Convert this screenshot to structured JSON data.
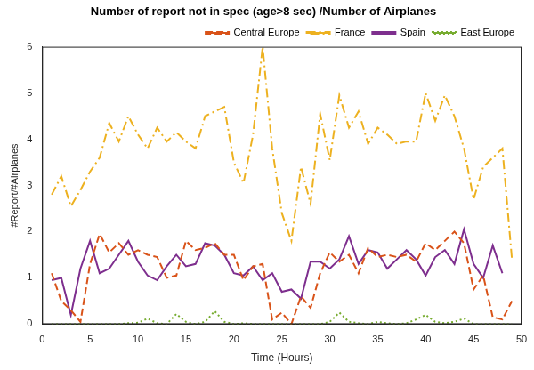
{
  "chart_data": {
    "type": "line",
    "title": "Number of report not in spec (age>8 sec) /Number of Airplanes",
    "x_label": "Time (Hours)",
    "y_label": "#Report/#Airplanes",
    "x": [
      1,
      2,
      3,
      4,
      5,
      6,
      7,
      8,
      9,
      10,
      11,
      12,
      13,
      14,
      15,
      16,
      17,
      18,
      19,
      20,
      21,
      22,
      23,
      24,
      25,
      26,
      27,
      28,
      29,
      30,
      31,
      32,
      33,
      34,
      35,
      36,
      37,
      38,
      39,
      40,
      41,
      42,
      43,
      44,
      45,
      46,
      47,
      48,
      49
    ],
    "series": [
      {
        "name": "Central Europe",
        "color": "#d95319",
        "line_style": "dashed",
        "values": [
          1.1,
          0.5,
          0.3,
          0.05,
          1.3,
          1.95,
          1.55,
          1.75,
          1.5,
          1.6,
          1.5,
          1.45,
          1.0,
          1.05,
          1.8,
          1.6,
          1.65,
          1.75,
          1.5,
          1.5,
          0.95,
          1.25,
          1.3,
          0.1,
          0.25,
          0.0,
          0.6,
          0.35,
          1.1,
          1.55,
          1.35,
          1.5,
          1.1,
          1.65,
          1.45,
          1.5,
          1.45,
          1.5,
          1.35,
          1.75,
          1.6,
          1.8,
          2.0,
          1.75,
          0.75,
          1.05,
          0.15,
          0.1,
          0.5
        ]
      },
      {
        "name": "France",
        "color": "#edb120",
        "line_style": "dashdot",
        "values": [
          2.8,
          3.2,
          2.55,
          2.9,
          3.3,
          3.6,
          4.35,
          3.95,
          4.5,
          4.1,
          3.8,
          4.25,
          3.95,
          4.15,
          3.95,
          3.8,
          4.5,
          4.6,
          4.7,
          3.5,
          3.05,
          4.1,
          6.0,
          3.8,
          2.4,
          1.8,
          3.4,
          2.6,
          4.55,
          3.55,
          4.95,
          4.25,
          4.6,
          3.9,
          4.25,
          4.1,
          3.9,
          3.95,
          3.95,
          5.0,
          4.4,
          4.95,
          4.5,
          3.8,
          2.7,
          3.4,
          3.6,
          3.8,
          1.4
        ]
      },
      {
        "name": "Spain",
        "color": "#7e2f8e",
        "line_style": "solid",
        "values": [
          0.95,
          1.0,
          0.2,
          1.2,
          1.8,
          1.1,
          1.2,
          1.5,
          1.8,
          1.35,
          1.05,
          0.95,
          1.25,
          1.5,
          1.25,
          1.3,
          1.75,
          1.7,
          1.5,
          1.1,
          1.05,
          1.25,
          0.95,
          1.1,
          0.7,
          0.75,
          0.55,
          1.35,
          1.35,
          1.2,
          1.4,
          1.9,
          1.3,
          1.6,
          1.55,
          1.2,
          1.4,
          1.6,
          1.4,
          1.05,
          1.45,
          1.6,
          1.3,
          2.05,
          1.3,
          1.0,
          1.7,
          1.1,
          null
        ]
      },
      {
        "name": "East Europe",
        "color": "#77ac30",
        "line_style": "dotted",
        "values": [
          0,
          0,
          0,
          0,
          0,
          0,
          0,
          0,
          0.02,
          0.03,
          0.12,
          0.02,
          0,
          0.22,
          0.05,
          0,
          0.05,
          0.28,
          0.05,
          0,
          0.02,
          0,
          0,
          0,
          0,
          0,
          0,
          0,
          0,
          0.05,
          0.25,
          0.05,
          0.02,
          0,
          0.05,
          0.02,
          0,
          0.02,
          0.1,
          0.2,
          0.05,
          0.02,
          0.05,
          0.12,
          0,
          0,
          0,
          0,
          0
        ]
      }
    ],
    "xlim": [
      0,
      50
    ],
    "xticks": [
      0,
      5,
      10,
      15,
      20,
      25,
      30,
      35,
      40,
      45,
      50
    ],
    "ylim": [
      0,
      6
    ],
    "yticks": [
      0,
      1,
      2,
      3,
      4,
      5,
      6
    ],
    "grid": false,
    "legend": "upper right"
  }
}
